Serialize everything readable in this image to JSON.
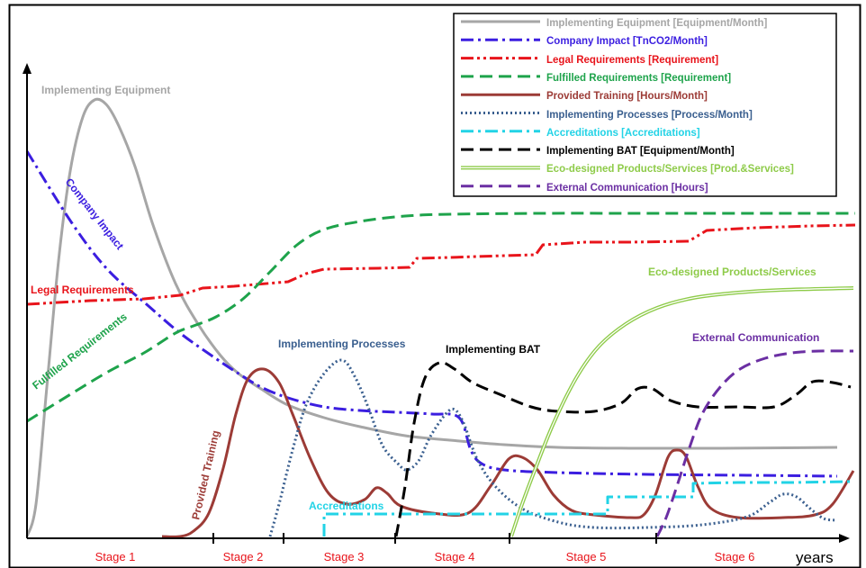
{
  "chart_data": {
    "type": "line",
    "xlabel": "years",
    "stages": [
      "Stage 1",
      "Stage 2",
      "Stage 3",
      "Stage 4",
      "Stage 5",
      "Stage 6"
    ],
    "grid": false,
    "legend_position": "top-right",
    "series": [
      {
        "key": "equipment",
        "name": "Implementing Equipment  [Equipment/Month]",
        "label": "Implementing Equipment",
        "color": "#a6a6a6",
        "style": "solid",
        "points": [
          [
            30,
            596
          ],
          [
            40,
            560
          ],
          [
            52,
            430
          ],
          [
            65,
            290
          ],
          [
            78,
            190
          ],
          [
            92,
            130
          ],
          [
            105,
            111
          ],
          [
            118,
            116
          ],
          [
            132,
            140
          ],
          [
            150,
            185
          ],
          [
            170,
            250
          ],
          [
            195,
            315
          ],
          [
            220,
            360
          ],
          [
            245,
            395
          ],
          [
            265,
            415
          ],
          [
            290,
            432
          ],
          [
            320,
            450
          ],
          [
            360,
            464
          ],
          [
            400,
            474
          ],
          [
            450,
            484
          ],
          [
            500,
            489
          ],
          [
            560,
            494
          ],
          [
            620,
            497
          ],
          [
            700,
            498
          ],
          [
            800,
            498
          ],
          [
            930,
            497
          ]
        ]
      },
      {
        "key": "impact",
        "name": "Company Impact [TnCO2/Month]",
        "label": "Company Impact",
        "color": "#3b1ee0",
        "style": "dashdot",
        "points": [
          [
            30,
            168
          ],
          [
            80,
            248
          ],
          [
            120,
            300
          ],
          [
            165,
            340
          ],
          [
            200,
            370
          ],
          [
            235,
            395
          ],
          [
            265,
            415
          ],
          [
            290,
            430
          ],
          [
            320,
            442
          ],
          [
            360,
            452
          ],
          [
            400,
            456
          ],
          [
            440,
            458
          ],
          [
            480,
            460
          ],
          [
            510,
            464
          ],
          [
            523,
            500
          ],
          [
            535,
            515
          ],
          [
            560,
            522
          ],
          [
            620,
            525
          ],
          [
            720,
            527
          ],
          [
            830,
            528
          ],
          [
            930,
            529
          ]
        ]
      },
      {
        "key": "legal",
        "name": "Legal Requirements [Requirement]",
        "label": "Legal Requirements",
        "color": "#e8141b",
        "style": "dashdotdot",
        "points": [
          [
            30,
            338
          ],
          [
            100,
            334
          ],
          [
            160,
            332
          ],
          [
            200,
            328
          ],
          [
            225,
            320
          ],
          [
            260,
            318
          ],
          [
            320,
            313
          ],
          [
            340,
            304
          ],
          [
            360,
            299
          ],
          [
            420,
            298
          ],
          [
            455,
            297
          ],
          [
            463,
            287
          ],
          [
            500,
            286
          ],
          [
            560,
            284
          ],
          [
            595,
            283
          ],
          [
            603,
            272
          ],
          [
            650,
            269
          ],
          [
            700,
            269
          ],
          [
            765,
            268
          ],
          [
            785,
            256
          ],
          [
            840,
            253
          ],
          [
            900,
            251
          ],
          [
            950,
            250
          ]
        ]
      },
      {
        "key": "fulfilled",
        "name": "Fulfilled Requirements [Requirement]",
        "label": "Fulfilled Requirements",
        "color": "#1ea34b",
        "style": "dashed",
        "points": [
          [
            30,
            468
          ],
          [
            80,
            437
          ],
          [
            120,
            413
          ],
          [
            160,
            392
          ],
          [
            195,
            370
          ],
          [
            215,
            362
          ],
          [
            240,
            352
          ],
          [
            270,
            332
          ],
          [
            300,
            302
          ],
          [
            330,
            272
          ],
          [
            360,
            255
          ],
          [
            400,
            246
          ],
          [
            450,
            240
          ],
          [
            500,
            238
          ],
          [
            600,
            237
          ],
          [
            700,
            237
          ],
          [
            800,
            237
          ],
          [
            950,
            237
          ]
        ]
      },
      {
        "key": "training",
        "name": "Provided Training  [Hours/Month]",
        "label": "Provided Training",
        "color": "#9c3b36",
        "style": "solid",
        "points": [
          [
            180,
            596
          ],
          [
            200,
            596
          ],
          [
            215,
            590
          ],
          [
            232,
            570
          ],
          [
            248,
            520
          ],
          [
            262,
            460
          ],
          [
            276,
            420
          ],
          [
            293,
            410
          ],
          [
            310,
            425
          ],
          [
            325,
            460
          ],
          [
            345,
            510
          ],
          [
            365,
            548
          ],
          [
            385,
            560
          ],
          [
            405,
            555
          ],
          [
            418,
            542
          ],
          [
            430,
            548
          ],
          [
            445,
            562
          ],
          [
            480,
            570
          ],
          [
            520,
            570
          ],
          [
            545,
            540
          ],
          [
            565,
            510
          ],
          [
            580,
            508
          ],
          [
            597,
            522
          ],
          [
            615,
            550
          ],
          [
            635,
            567
          ],
          [
            660,
            572
          ],
          [
            700,
            575
          ],
          [
            715,
            572
          ],
          [
            728,
            550
          ],
          [
            742,
            508
          ],
          [
            752,
            500
          ],
          [
            762,
            507
          ],
          [
            775,
            540
          ],
          [
            790,
            565
          ],
          [
            820,
            575
          ],
          [
            870,
            575
          ],
          [
            905,
            572
          ],
          [
            925,
            560
          ],
          [
            948,
            523
          ]
        ]
      },
      {
        "key": "processes",
        "name": "Implementing Processes [Process/Month]",
        "label": "Implementing Processes",
        "color": "#3a5f8f",
        "style": "dotted",
        "points": [
          [
            300,
            596
          ],
          [
            310,
            560
          ],
          [
            325,
            500
          ],
          [
            340,
            450
          ],
          [
            360,
            415
          ],
          [
            380,
            400
          ],
          [
            395,
            420
          ],
          [
            410,
            455
          ],
          [
            425,
            495
          ],
          [
            442,
            515
          ],
          [
            452,
            522
          ],
          [
            465,
            512
          ],
          [
            478,
            485
          ],
          [
            495,
            460
          ],
          [
            505,
            455
          ],
          [
            515,
            470
          ],
          [
            530,
            510
          ],
          [
            550,
            540
          ],
          [
            580,
            565
          ],
          [
            620,
            580
          ],
          [
            660,
            586
          ],
          [
            720,
            586
          ],
          [
            780,
            583
          ],
          [
            830,
            574
          ],
          [
            855,
            558
          ],
          [
            870,
            549
          ],
          [
            885,
            552
          ],
          [
            900,
            565
          ],
          [
            915,
            576
          ],
          [
            930,
            578
          ]
        ]
      },
      {
        "key": "accreditations",
        "name": "Accreditations [Accreditations]",
        "label": "Accreditations",
        "color": "#22d3e6",
        "style": "dashdot",
        "points": [
          [
            360,
            596
          ],
          [
            360,
            571
          ],
          [
            450,
            571
          ],
          [
            560,
            571
          ],
          [
            675,
            571
          ],
          [
            675,
            552
          ],
          [
            700,
            552
          ],
          [
            770,
            552
          ],
          [
            770,
            537
          ],
          [
            820,
            536
          ],
          [
            880,
            536
          ],
          [
            945,
            535
          ]
        ]
      },
      {
        "key": "bat",
        "name": "Implementing BAT [Equipment/Month]",
        "label": "Implementing BAT",
        "color": "#000000",
        "style": "dashed",
        "points": [
          [
            440,
            596
          ],
          [
            450,
            540
          ],
          [
            460,
            470
          ],
          [
            472,
            420
          ],
          [
            488,
            403
          ],
          [
            505,
            410
          ],
          [
            525,
            425
          ],
          [
            555,
            438
          ],
          [
            590,
            452
          ],
          [
            620,
            457
          ],
          [
            660,
            457
          ],
          [
            690,
            448
          ],
          [
            708,
            432
          ],
          [
            725,
            432
          ],
          [
            745,
            445
          ],
          [
            775,
            452
          ],
          [
            820,
            452
          ],
          [
            860,
            452
          ],
          [
            885,
            438
          ],
          [
            903,
            424
          ],
          [
            925,
            425
          ],
          [
            945,
            430
          ]
        ]
      },
      {
        "key": "eco",
        "name": "Eco-designed Products/Services  [Prod.&Services]",
        "label": "Eco-designed Products/Services",
        "color": "#8ecb49",
        "style": "double",
        "points": [
          [
            568,
            596
          ],
          [
            580,
            560
          ],
          [
            595,
            520
          ],
          [
            615,
            470
          ],
          [
            640,
            420
          ],
          [
            665,
            385
          ],
          [
            695,
            360
          ],
          [
            730,
            342
          ],
          [
            770,
            331
          ],
          [
            820,
            325
          ],
          [
            870,
            322
          ],
          [
            948,
            320
          ]
        ]
      },
      {
        "key": "external",
        "name": "External Communication  [Hours]",
        "label": "External Communication",
        "color": "#6b2fa3",
        "style": "dashed",
        "points": [
          [
            730,
            596
          ],
          [
            740,
            575
          ],
          [
            752,
            540
          ],
          [
            765,
            500
          ],
          [
            780,
            460
          ],
          [
            800,
            430
          ],
          [
            822,
            410
          ],
          [
            850,
            398
          ],
          [
            880,
            392
          ],
          [
            910,
            390
          ],
          [
            948,
            390
          ]
        ]
      }
    ]
  }
}
